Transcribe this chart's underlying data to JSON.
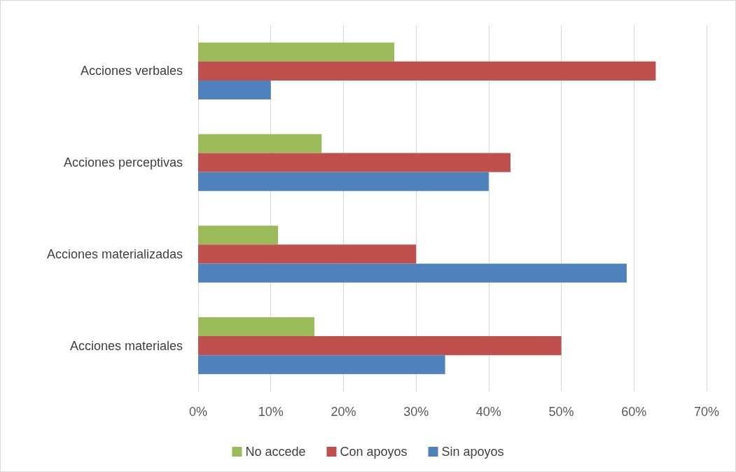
{
  "chart_data": {
    "type": "bar",
    "orientation": "horizontal",
    "categories": [
      "Acciones verbales",
      "Acciones perceptivas",
      "Acciones materializadas",
      "Acciones materiales"
    ],
    "series": [
      {
        "name": "No accede",
        "color": "#9bbb59",
        "values": [
          27,
          17,
          11,
          16
        ]
      },
      {
        "name": "Con apoyos",
        "color": "#c0504d",
        "values": [
          63,
          43,
          30,
          50
        ]
      },
      {
        "name": "Sin apoyos",
        "color": "#4f81bd",
        "values": [
          10,
          40,
          59,
          34
        ]
      }
    ],
    "xlim": [
      0,
      70
    ],
    "xticks": [
      {
        "value": 0,
        "label": "0%"
      },
      {
        "value": 10,
        "label": "10%"
      },
      {
        "value": 20,
        "label": "20%"
      },
      {
        "value": 30,
        "label": "30%"
      },
      {
        "value": 40,
        "label": "40%"
      },
      {
        "value": 50,
        "label": "50%"
      },
      {
        "value": 60,
        "label": "60%"
      },
      {
        "value": 70,
        "label": "70%"
      }
    ],
    "grid": "x",
    "legend": "bottom"
  }
}
